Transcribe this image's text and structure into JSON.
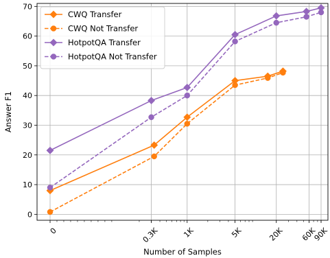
{
  "chart_data": {
    "type": "line",
    "xlabel": "Number of Samples",
    "ylabel": "Answer F1",
    "ylim": [
      -2,
      71
    ],
    "xticks": [
      {
        "value": 0,
        "label": "0"
      },
      {
        "value": 300,
        "label": "0.3K"
      },
      {
        "value": 1000,
        "label": "1K"
      },
      {
        "value": 5000,
        "label": "5K"
      },
      {
        "value": 20000,
        "label": "20K"
      },
      {
        "value": 60000,
        "label": "60K"
      },
      {
        "value": 90000,
        "label": "90K"
      }
    ],
    "yticks": [
      0,
      10,
      20,
      30,
      40,
      50,
      60,
      70
    ],
    "grid": true,
    "legend_position": "top-left",
    "series": [
      {
        "name": "CWQ Transfer",
        "color": "#ff7f0e",
        "linestyle": "solid",
        "marker": "diamond",
        "x": [
          0,
          330,
          1000,
          5000,
          15000,
          25000
        ],
        "y": [
          8,
          23.3,
          32.7,
          45,
          46.5,
          48.2
        ]
      },
      {
        "name": "CWQ Not Transfer",
        "color": "#ff7f0e",
        "linestyle": "dashed",
        "marker": "circle",
        "x": [
          0,
          330,
          1000,
          5000,
          15000,
          25000
        ],
        "y": [
          0.8,
          19.5,
          30.5,
          43.5,
          45.9,
          47.7
        ]
      },
      {
        "name": "HotpotQA Transfer",
        "color": "#9467bd",
        "linestyle": "solid",
        "marker": "diamond",
        "x": [
          0,
          300,
          1000,
          5000,
          20000,
          55000,
          90000
        ],
        "y": [
          21.5,
          38.3,
          42.7,
          60.5,
          66.8,
          68.3,
          69.5
        ]
      },
      {
        "name": "HotpotQA Not Transfer",
        "color": "#9467bd",
        "linestyle": "dashed",
        "marker": "circle",
        "x": [
          0,
          300,
          1000,
          5000,
          20000,
          55000,
          90000
        ],
        "y": [
          9,
          32.7,
          40,
          58.2,
          64.5,
          66.5,
          68
        ]
      }
    ]
  }
}
